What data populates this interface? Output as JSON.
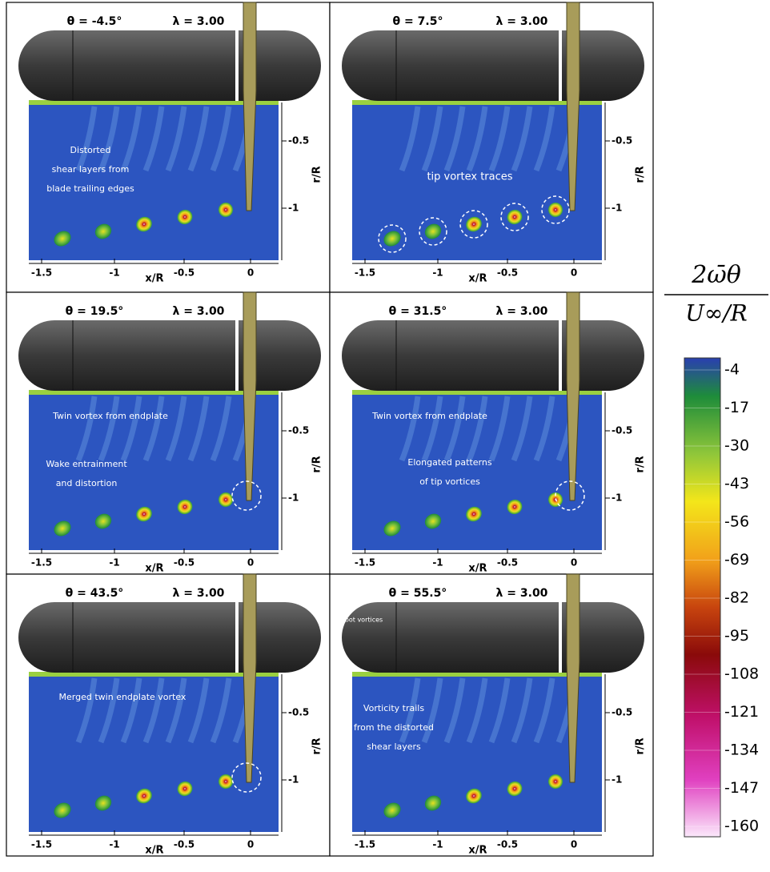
{
  "panels": [
    {
      "theta": "θ = -4.5°",
      "lambda": "λ = 3.00",
      "annotations": [
        [
          "Distorted",
          "shear layers from",
          "blade trailing edges"
        ]
      ]
    },
    {
      "theta": "θ = 7.5°",
      "lambda": "λ = 3.00",
      "annotations": [
        [
          "tip vortex traces"
        ]
      ]
    },
    {
      "theta": "θ = 19.5°",
      "lambda": "λ = 3.00",
      "annotations": [
        [
          "Twin vortex from endplate"
        ],
        [
          "Wake entrainment",
          "and distortion"
        ]
      ]
    },
    {
      "theta": "θ = 31.5°",
      "lambda": "λ = 3.00",
      "annotations": [
        [
          "Twin vortex from endplate"
        ],
        [
          "Elongated patterns",
          "of tip vortices"
        ]
      ]
    },
    {
      "theta": "θ = 43.5°",
      "lambda": "λ = 3.00",
      "annotations": [
        [
          "Merged twin endplate vortex"
        ]
      ]
    },
    {
      "theta": "θ = 55.5°",
      "lambda": "λ = 3.00",
      "annotations": [
        [
          "Root vortices"
        ],
        [
          "Vorticity trails",
          "from the distorted",
          "shear layers"
        ]
      ]
    }
  ],
  "axes": {
    "x_ticks": [
      "-1.5",
      "-1",
      "-0.5",
      "0"
    ],
    "x_label": "x/R",
    "y_ticks": [
      "-0.5",
      "-1"
    ],
    "y_label": "r/R"
  },
  "colorbar": {
    "numerator": "2ω̄θ",
    "denominator": "U∞/R",
    "levels": [
      "-4",
      "-17",
      "-30",
      "-43",
      "-56",
      "-69",
      "-82",
      "-95",
      "-108",
      "-121",
      "-134",
      "-147",
      "-160"
    ]
  }
}
